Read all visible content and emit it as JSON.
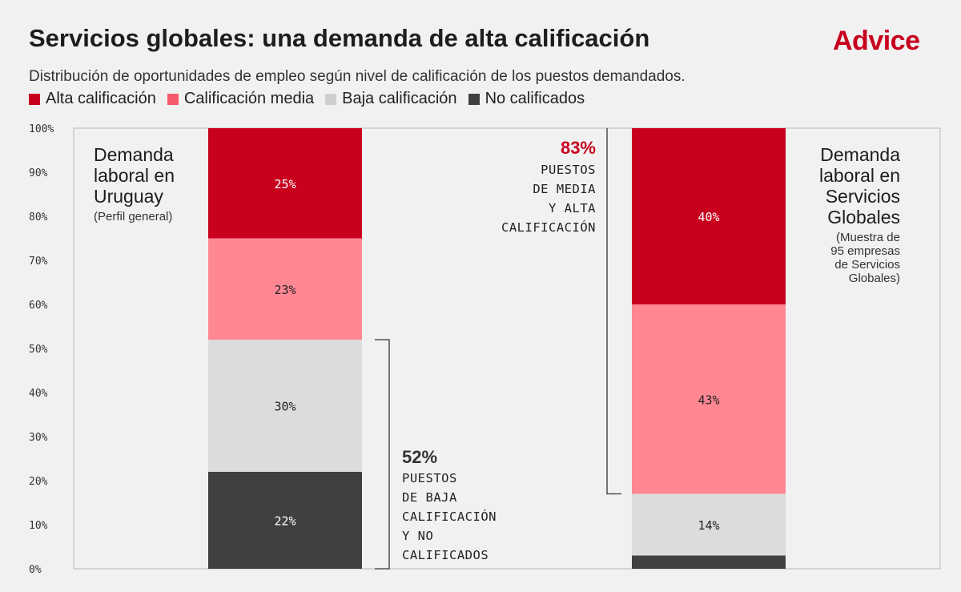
{
  "title": "Servicios globales: una demanda de alta calificación",
  "logo": "Advice",
  "subtitle": "Distribución de oportunidades de empleo según nivel de calificación de los puestos demandados.",
  "colors": {
    "alta": "#c8001e",
    "media": "#ff8793",
    "baja": "#dcdcdc",
    "no": "#404040",
    "legend_media": "#f55a6a",
    "legend_baja": "#cfcfcf",
    "accent": "#c8001e"
  },
  "legend": [
    {
      "label": "Alta calificación",
      "color": "#c8001e"
    },
    {
      "label": "Calificación media",
      "color": "#f55a6a"
    },
    {
      "label": "Baja calificación",
      "color": "#cfcfcf"
    },
    {
      "label": "No calificados",
      "color": "#404040"
    }
  ],
  "panels": {
    "uruguay": {
      "title": "Demanda\nlaboral en\nUruguay",
      "note": "(Perfil general)"
    },
    "servicios": {
      "title": "Demanda\nlaboral en\nServicios\nGlobales",
      "note": "(Muestra de\n95 empresas\nde Servicios\nGlobales)"
    }
  },
  "annotations": {
    "low": {
      "value": "52%",
      "text": "PUESTOS\nDE BAJA\nCALIFICACIÓN\nY NO\nCALIFICADOS"
    },
    "high": {
      "value": "83%",
      "text": "PUESTOS\nDE MEDIA\nY ALTA\nCALIFICACIÓN"
    }
  },
  "chart_data": {
    "type": "bar",
    "stacked": true,
    "categories": [
      "Demanda laboral en Uruguay",
      "Demanda laboral en Servicios Globales"
    ],
    "series": [
      {
        "name": "No calificados",
        "values": [
          22,
          3
        ],
        "labels": [
          "22%",
          ""
        ]
      },
      {
        "name": "Baja calificación",
        "values": [
          30,
          14
        ],
        "labels": [
          "30%",
          "14%"
        ]
      },
      {
        "name": "Calificación media",
        "values": [
          23,
          43
        ],
        "labels": [
          "23%",
          "43%"
        ]
      },
      {
        "name": "Alta calificación",
        "values": [
          25,
          40
        ],
        "labels": [
          "25%",
          "40%"
        ]
      }
    ],
    "ylim": [
      0,
      100
    ],
    "yticks": [
      "0%",
      "10%",
      "20%",
      "30%",
      "40%",
      "50%",
      "60%",
      "70%",
      "80%",
      "90%",
      "100%"
    ]
  }
}
